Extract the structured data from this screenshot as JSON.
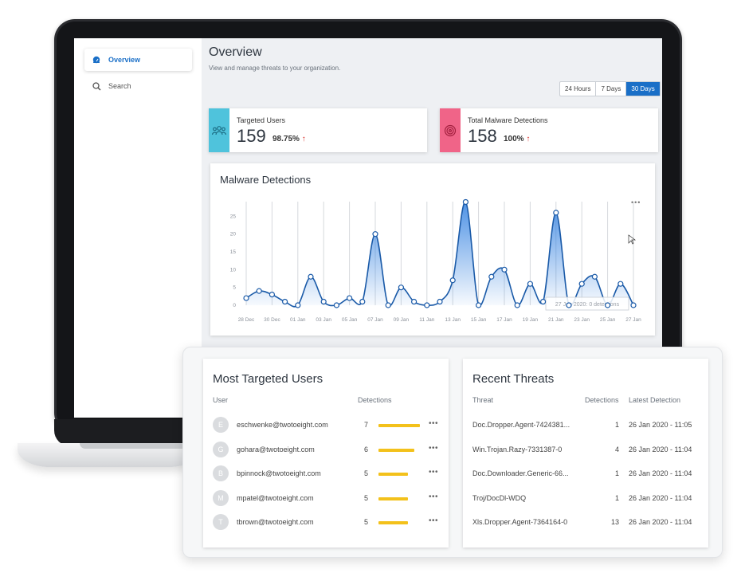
{
  "sidebar": {
    "items": [
      {
        "label": "Overview",
        "icon": "dashboard-cloud-icon",
        "active": true
      },
      {
        "label": "Search",
        "icon": "search-icon",
        "active": false
      }
    ]
  },
  "header": {
    "title": "Overview",
    "subtitle": "View and manage threats to your organization."
  },
  "time_range": {
    "options": [
      "24 Hours",
      "7 Days",
      "30 Days"
    ],
    "selected": "30 Days"
  },
  "stats": [
    {
      "label": "Targeted Users",
      "value": "159",
      "percent": "98.75%",
      "trend_icon": "arrow-up-icon",
      "color": "#4fc3dc",
      "icon": "users-icon"
    },
    {
      "label": "Total Malware Detections",
      "value": "158",
      "percent": "100%",
      "trend_icon": "arrow-up-icon",
      "color": "#f06488",
      "icon": "target-icon"
    }
  ],
  "chart_data": {
    "type": "area",
    "title": "Malware Detections",
    "x": [
      "28 Dec",
      "29 Dec",
      "30 Dec",
      "31 Dec",
      "01 Jan",
      "02 Jan",
      "03 Jan",
      "04 Jan",
      "05 Jan",
      "06 Jan",
      "07 Jan",
      "08 Jan",
      "09 Jan",
      "10 Jan",
      "11 Jan",
      "12 Jan",
      "13 Jan",
      "14 Jan",
      "15 Jan",
      "16 Jan",
      "17 Jan",
      "18 Jan",
      "19 Jan",
      "20 Jan",
      "21 Jan",
      "22 Jan",
      "23 Jan",
      "24 Jan",
      "25 Jan",
      "26 Jan",
      "27 Jan"
    ],
    "xtick_labels": [
      "28 Dec",
      "30 Dec",
      "01 Jan",
      "03 Jan",
      "05 Jan",
      "07 Jan",
      "09 Jan",
      "11 Jan",
      "13 Jan",
      "15 Jan",
      "17 Jan",
      "19 Jan",
      "21 Jan",
      "23 Jan",
      "25 Jan",
      "27 Jan"
    ],
    "series": [
      {
        "values": [
          2,
          4,
          3,
          1,
          0,
          8,
          1,
          0,
          2,
          1,
          20,
          0,
          5,
          1,
          0,
          1,
          7,
          29,
          0,
          8,
          10,
          0,
          6,
          1,
          26,
          0,
          6,
          8,
          0,
          6,
          0
        ]
      }
    ],
    "yticks": [
      0,
      5,
      10,
      15,
      20,
      25
    ],
    "ylim": [
      0,
      30
    ],
    "tooltip": "27 Jan 2020: 0 detections",
    "color": "#1a5aa8",
    "grid": "vertical"
  },
  "targeted_users": {
    "title": "Most Targeted Users",
    "columns": [
      "User",
      "Detections"
    ],
    "rows": [
      {
        "initial": "E",
        "email": "eschwenke@twotoeight.com",
        "detections": 7
      },
      {
        "initial": "G",
        "email": "gohara@twotoeight.com",
        "detections": 6
      },
      {
        "initial": "B",
        "email": "bpinnock@twotoeight.com",
        "detections": 5
      },
      {
        "initial": "M",
        "email": "mpatel@twotoeight.com",
        "detections": 5
      },
      {
        "initial": "T",
        "email": "tbrown@twotoeight.com",
        "detections": 5
      }
    ],
    "bar_color": "#f3c11b"
  },
  "recent_threats": {
    "title": "Recent Threats",
    "columns": [
      "Threat",
      "Detections",
      "Latest Detection"
    ],
    "rows": [
      {
        "threat": "Doc.Dropper.Agent-7424381...",
        "detections": "1",
        "latest": "26 Jan 2020 - 11:05"
      },
      {
        "threat": "Win.Trojan.Razy-7331387-0",
        "detections": "4",
        "latest": "26 Jan 2020 - 11:04"
      },
      {
        "threat": "Doc.Downloader.Generic-66...",
        "detections": "1",
        "latest": "26 Jan 2020 - 11:04"
      },
      {
        "threat": "Troj/DocDl-WDQ",
        "detections": "1",
        "latest": "26 Jan 2020 - 11:04"
      },
      {
        "threat": "Xls.Dropper.Agent-7364164-0",
        "detections": "13",
        "latest": "26 Jan 2020 - 11:04"
      }
    ]
  }
}
